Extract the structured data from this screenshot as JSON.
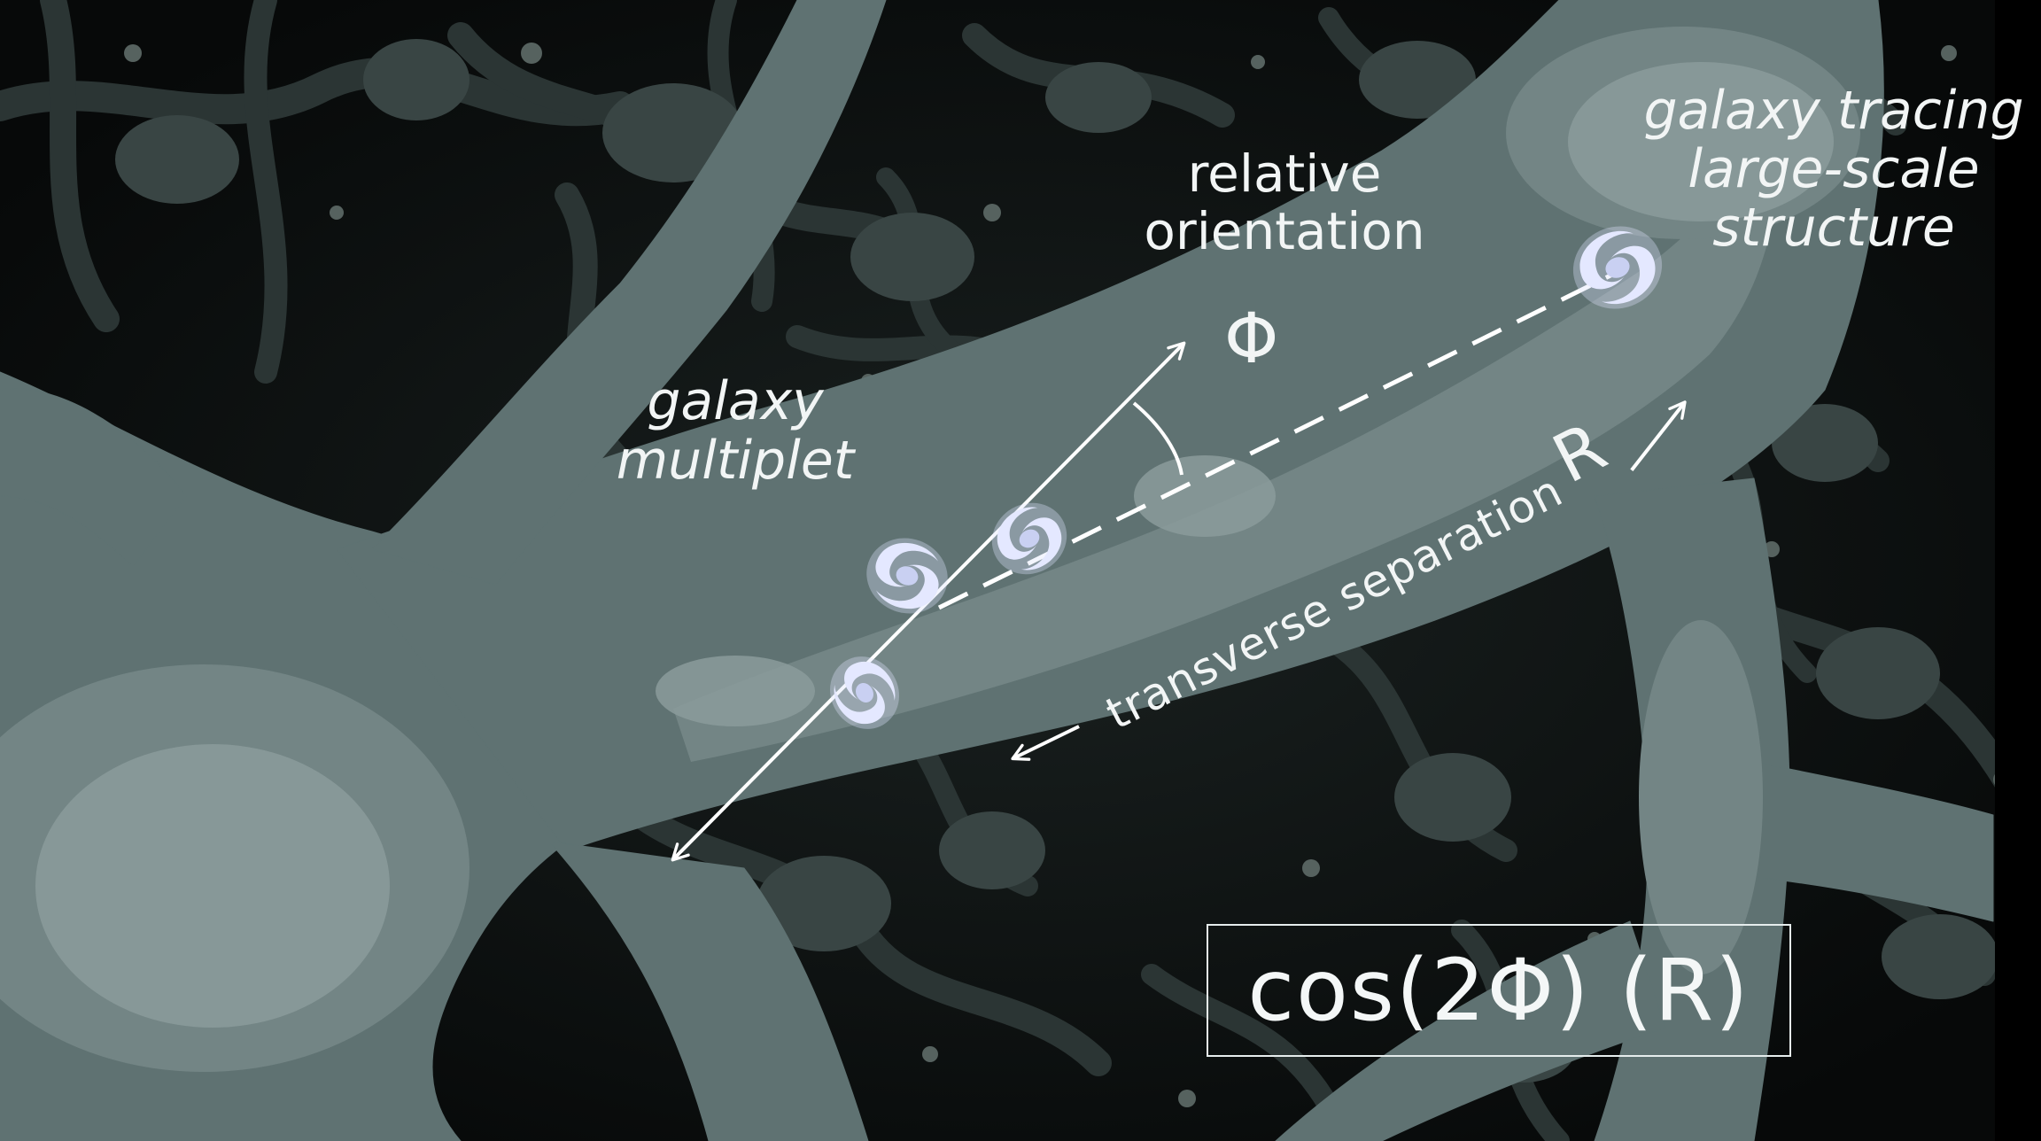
{
  "labels": {
    "multiplet": [
      "galaxy",
      "multiplet"
    ],
    "orientation": [
      "relative",
      "orientation"
    ],
    "tracing": [
      "galaxy tracing",
      "large-scale",
      "structure"
    ],
    "phi": "Φ",
    "r": "R",
    "separation": "transverse separation"
  },
  "formula": "cos(2Φ) (R)",
  "colors": {
    "background": "#000000",
    "filament": "#5f7272",
    "filament_light": "#7b8d8d",
    "web_dark": "#26302f",
    "galaxy": "#dde2fb",
    "annotation": "#ffffff"
  }
}
